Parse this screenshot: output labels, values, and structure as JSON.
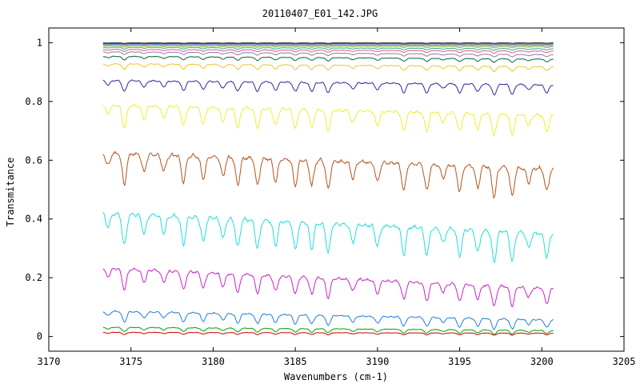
{
  "chart_data": {
    "type": "line",
    "title": "20110407_E01_142.JPG",
    "xlabel": "Wavenumbers (cm-1)",
    "ylabel": "Transmitance",
    "xlim": [
      3170,
      3205
    ],
    "ylim": [
      -0.05,
      1.05
    ],
    "xticks": [
      3170,
      3175,
      3180,
      3185,
      3190,
      3195,
      3200,
      3205
    ],
    "xtick_labels": [
      "3170",
      "3175",
      "3180",
      "3185",
      "3190",
      "3195",
      "3200",
      "3205"
    ],
    "yticks": [
      0,
      0.2,
      0.4,
      0.6,
      0.8,
      1
    ],
    "ytick_labels": [
      "0",
      "0.2",
      "0.4",
      "0.6",
      "0.8",
      "1"
    ],
    "grid": false,
    "x_range_of_data": [
      3173.3,
      3200.7
    ],
    "dip_positions": [
      3173.6,
      3174.6,
      3175.8,
      3177.0,
      3178.2,
      3179.4,
      3180.6,
      3181.5,
      3182.7,
      3183.8,
      3185.0,
      3186.0,
      3187.0,
      3188.5,
      3190.0,
      3191.6,
      3193.0,
      3194.0,
      3195.0,
      3196.1,
      3197.1,
      3198.2,
      3199.2,
      3200.3
    ],
    "series": [
      {
        "color": "#cc0000",
        "baseline": 0.015,
        "end": 0.012,
        "depth_scale": 0.1
      },
      {
        "color": "#00a000",
        "baseline": 0.033,
        "end": 0.022,
        "depth_scale": 0.2
      },
      {
        "color": "#1f7fd6",
        "baseline": 0.09,
        "end": 0.06,
        "depth_scale": 0.5
      },
      {
        "color": "#cc22cc",
        "baseline": 0.24,
        "end": 0.17,
        "depth_scale": 1.0
      },
      {
        "color": "#22dddd",
        "baseline": 0.43,
        "end": 0.36,
        "depth_scale": 1.6
      },
      {
        "color": "#b5531c",
        "baseline": 0.635,
        "end": 0.58,
        "depth_scale": 1.6
      },
      {
        "color": "#eeee33",
        "baseline": 0.795,
        "end": 0.76,
        "depth_scale": 1.2
      },
      {
        "color": "#2a2a99",
        "baseline": 0.875,
        "end": 0.86,
        "depth_scale": 0.6
      },
      {
        "color": "#f0c030",
        "baseline": 0.93,
        "end": 0.92,
        "depth_scale": 0.3
      },
      {
        "color": "#006633",
        "baseline": 0.955,
        "end": 0.945,
        "depth_scale": 0.2
      },
      {
        "color": "#9a70c0",
        "baseline": 0.97,
        "end": 0.96,
        "depth_scale": 0.15
      },
      {
        "color": "#e06060",
        "baseline": 0.978,
        "end": 0.972,
        "depth_scale": 0.12
      },
      {
        "color": "#33aa99",
        "baseline": 0.985,
        "end": 0.98,
        "depth_scale": 0.1
      },
      {
        "color": "#88aa33",
        "baseline": 0.99,
        "end": 0.987,
        "depth_scale": 0.08
      },
      {
        "color": "#3377cc",
        "baseline": 0.994,
        "end": 0.992,
        "depth_scale": 0.06
      },
      {
        "color": "#666666",
        "baseline": 0.997,
        "end": 0.996,
        "depth_scale": 0.04
      },
      {
        "color": "#000000",
        "baseline": 0.999,
        "end": 0.999,
        "depth_scale": 0.02
      }
    ]
  }
}
